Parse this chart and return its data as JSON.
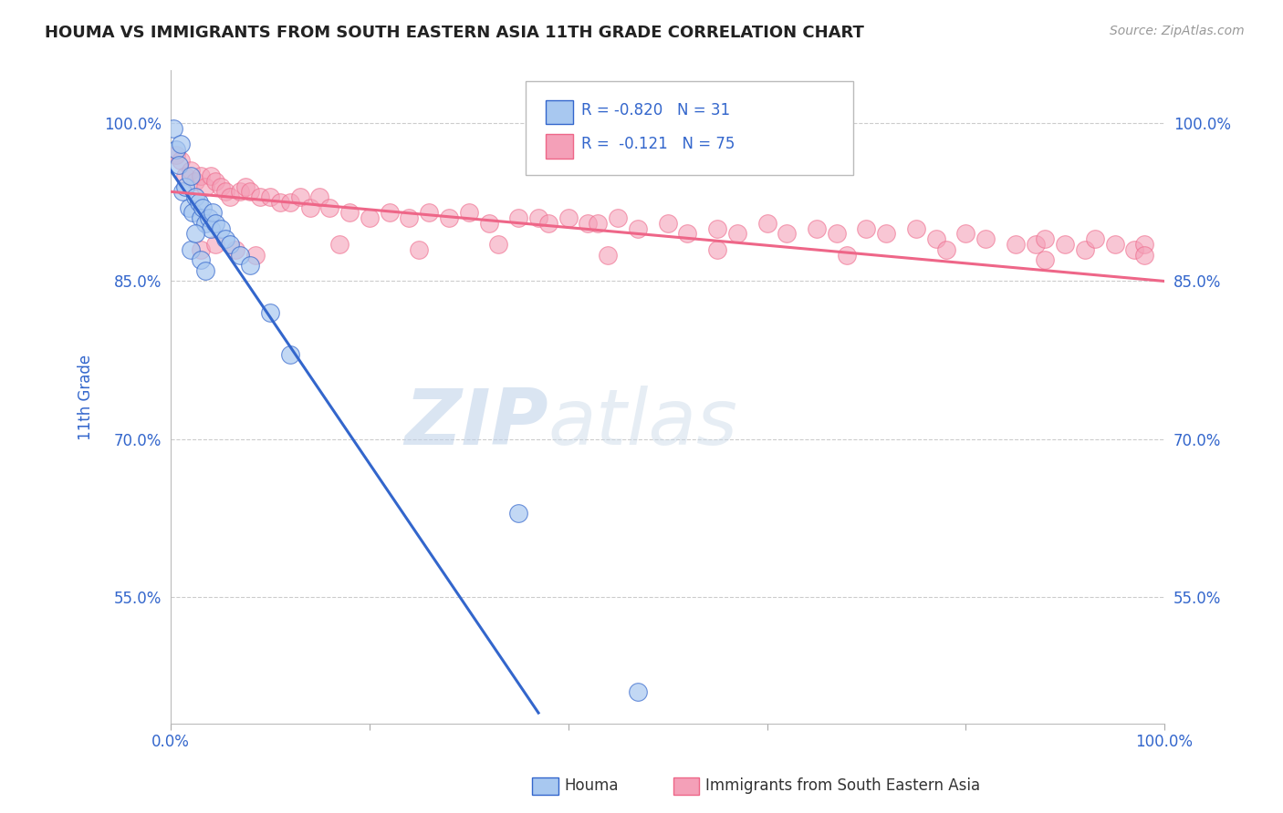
{
  "title": "HOUMA VS IMMIGRANTS FROM SOUTH EASTERN ASIA 11TH GRADE CORRELATION CHART",
  "source_text": "Source: ZipAtlas.com",
  "ylabel": "11th Grade",
  "xlim": [
    0.0,
    100.0
  ],
  "ylim": [
    43.0,
    105.0
  ],
  "ytick_labels": [
    "55.0%",
    "70.0%",
    "85.0%",
    "100.0%"
  ],
  "ytick_values": [
    55.0,
    70.0,
    85.0,
    100.0
  ],
  "color_blue": "#A8C8F0",
  "color_pink": "#F4A0B8",
  "color_blue_line": "#3366CC",
  "color_pink_line": "#EE6688",
  "color_text_blue": "#3366CC",
  "watermark_zip": "ZIP",
  "watermark_atlas": "atlas",
  "background_color": "#FFFFFF",
  "blue_scatter_x": [
    0.3,
    0.5,
    0.8,
    1.0,
    1.2,
    1.5,
    1.8,
    2.0,
    2.2,
    2.5,
    2.8,
    3.0,
    3.2,
    3.5,
    3.8,
    4.0,
    4.2,
    4.5,
    5.0,
    5.5,
    6.0,
    7.0,
    8.0,
    2.0,
    2.5,
    3.0,
    3.5,
    10.0,
    12.0,
    35.0,
    47.0
  ],
  "blue_scatter_y": [
    99.5,
    97.5,
    96.0,
    98.0,
    93.5,
    94.0,
    92.0,
    95.0,
    91.5,
    93.0,
    92.5,
    91.0,
    92.0,
    90.5,
    91.0,
    90.0,
    91.5,
    90.5,
    90.0,
    89.0,
    88.5,
    87.5,
    86.5,
    88.0,
    89.5,
    87.0,
    86.0,
    82.0,
    78.0,
    63.0,
    46.0
  ],
  "pink_scatter_x": [
    0.5,
    1.0,
    1.5,
    2.0,
    2.5,
    3.0,
    3.5,
    4.0,
    4.5,
    5.0,
    5.5,
    6.0,
    7.0,
    7.5,
    8.0,
    9.0,
    10.0,
    11.0,
    12.0,
    13.0,
    14.0,
    15.0,
    16.0,
    18.0,
    20.0,
    22.0,
    24.0,
    26.0,
    28.0,
    30.0,
    32.0,
    35.0,
    37.0,
    38.0,
    40.0,
    42.0,
    43.0,
    45.0,
    47.0,
    50.0,
    52.0,
    55.0,
    57.0,
    60.0,
    62.0,
    65.0,
    67.0,
    70.0,
    72.0,
    75.0,
    77.0,
    80.0,
    82.0,
    85.0,
    87.0,
    88.0,
    90.0,
    92.0,
    93.0,
    95.0,
    97.0,
    98.0,
    3.0,
    4.5,
    6.5,
    8.5,
    17.0,
    25.0,
    33.0,
    44.0,
    55.0,
    68.0,
    78.0,
    88.0,
    98.0
  ],
  "pink_scatter_y": [
    97.0,
    96.5,
    95.0,
    95.5,
    94.5,
    95.0,
    94.0,
    95.0,
    94.5,
    94.0,
    93.5,
    93.0,
    93.5,
    94.0,
    93.5,
    93.0,
    93.0,
    92.5,
    92.5,
    93.0,
    92.0,
    93.0,
    92.0,
    91.5,
    91.0,
    91.5,
    91.0,
    91.5,
    91.0,
    91.5,
    90.5,
    91.0,
    91.0,
    90.5,
    91.0,
    90.5,
    90.5,
    91.0,
    90.0,
    90.5,
    89.5,
    90.0,
    89.5,
    90.5,
    89.5,
    90.0,
    89.5,
    90.0,
    89.5,
    90.0,
    89.0,
    89.5,
    89.0,
    88.5,
    88.5,
    89.0,
    88.5,
    88.0,
    89.0,
    88.5,
    88.0,
    88.5,
    88.0,
    88.5,
    88.0,
    87.5,
    88.5,
    88.0,
    88.5,
    87.5,
    88.0,
    87.5,
    88.0,
    87.0,
    87.5
  ],
  "blue_line_x": [
    0.0,
    37.0
  ],
  "blue_line_y": [
    95.5,
    44.0
  ],
  "pink_line_x": [
    0.0,
    100.0
  ],
  "pink_line_y": [
    93.5,
    85.0
  ]
}
